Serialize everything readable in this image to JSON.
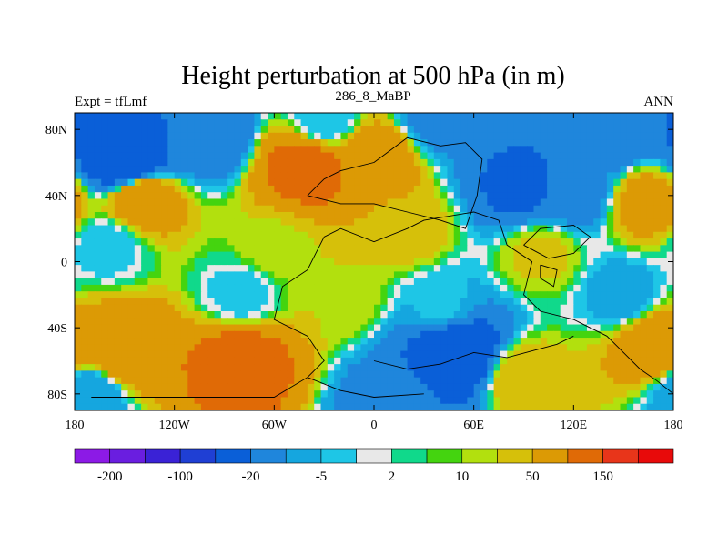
{
  "chart_data": {
    "type": "heatmap",
    "title": "Height perturbation at 500 hPa (in m)",
    "subtitle_left": "Expt = tfLmf",
    "subtitle_center": "286_8_MaBP",
    "subtitle_right": "ANN",
    "xlim": [
      -180,
      180
    ],
    "ylim": [
      -90,
      90
    ],
    "x_ticks": [
      {
        "value": -180,
        "label": "180"
      },
      {
        "value": -120,
        "label": "120W"
      },
      {
        "value": -60,
        "label": "60W"
      },
      {
        "value": 0,
        "label": "0"
      },
      {
        "value": 60,
        "label": "60E"
      },
      {
        "value": 120,
        "label": "120E"
      },
      {
        "value": 180,
        "label": "180"
      }
    ],
    "y_ticks": [
      {
        "value": 80,
        "label": "80N"
      },
      {
        "value": 40,
        "label": "40N"
      },
      {
        "value": 0,
        "label": "0"
      },
      {
        "value": -40,
        "label": "40S"
      },
      {
        "value": -80,
        "label": "80S"
      }
    ],
    "colorbar": {
      "colors": [
        "#8c1ae6",
        "#6a1ee0",
        "#3a22d6",
        "#1f3fd4",
        "#0a5fd8",
        "#1f86dc",
        "#15a6df",
        "#1ec6e6",
        "#e8e8e8",
        "#10d98b",
        "#44d40f",
        "#b2e00e",
        "#d6c00a",
        "#dc9a05",
        "#e06a06",
        "#e8351a",
        "#e80a0a"
      ],
      "labels": [
        "-200",
        "-100",
        "-20",
        "-5",
        "2",
        "10",
        "50",
        "150"
      ]
    },
    "field": [
      {
        "lon": -150,
        "lat": 62,
        "value": -100
      },
      {
        "lon": -100,
        "lat": 78,
        "value": -40
      },
      {
        "lon": -30,
        "lat": 85,
        "value": -10
      },
      {
        "lon": 40,
        "lat": 88,
        "value": -30
      },
      {
        "lon": 140,
        "lat": 80,
        "value": -50
      },
      {
        "lon": -40,
        "lat": 58,
        "value": 70
      },
      {
        "lon": 0,
        "lat": 62,
        "value": 40
      },
      {
        "lon": -140,
        "lat": 37,
        "value": 40
      },
      {
        "lon": 165,
        "lat": 35,
        "value": 30
      },
      {
        "lon": 90,
        "lat": 45,
        "value": -60
      },
      {
        "lon": 120,
        "lat": 42,
        "value": -30
      },
      {
        "lon": -160,
        "lat": 10,
        "value": -8
      },
      {
        "lon": -60,
        "lat": 8,
        "value": 8
      },
      {
        "lon": 20,
        "lat": 18,
        "value": 15
      },
      {
        "lon": 100,
        "lat": 5,
        "value": 12
      },
      {
        "lon": -80,
        "lat": -20,
        "value": -8
      },
      {
        "lon": -20,
        "lat": -20,
        "value": 10
      },
      {
        "lon": 40,
        "lat": -25,
        "value": -8
      },
      {
        "lon": 150,
        "lat": -20,
        "value": -15
      },
      {
        "lon": -150,
        "lat": -55,
        "value": 50
      },
      {
        "lon": -80,
        "lat": -60,
        "value": 70
      },
      {
        "lon": 50,
        "lat": -55,
        "value": -100
      },
      {
        "lon": 90,
        "lat": -70,
        "value": 20
      },
      {
        "lon": 170,
        "lat": -50,
        "value": 40
      },
      {
        "lon": -170,
        "lat": -80,
        "value": -20
      },
      {
        "lon": 10,
        "lat": -85,
        "value": -30
      }
    ]
  }
}
